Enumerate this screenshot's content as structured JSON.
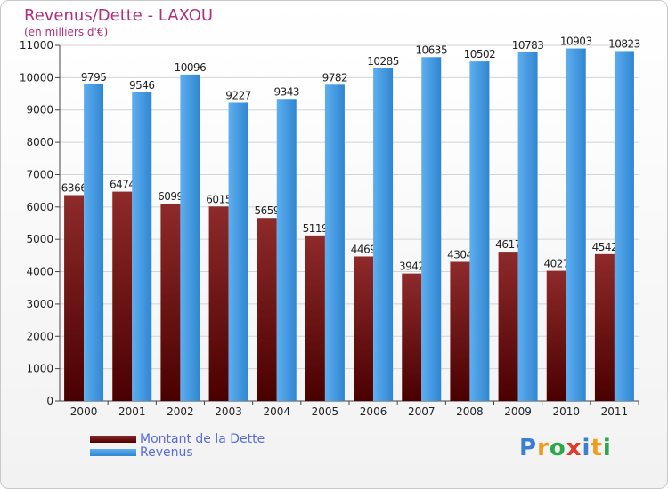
{
  "header": {
    "title": "Revenus/Dette - LAXOU",
    "subtitle": "(en milliers d'€)"
  },
  "legend": {
    "items": [
      {
        "label": "Montant de la Dette",
        "color": "#8b1a1a"
      },
      {
        "label": "Revenus",
        "color": "#3a96e0"
      }
    ]
  },
  "logo": {
    "text": "Proxiti",
    "letters": [
      "P",
      "r",
      "o",
      "x",
      "i",
      "t",
      "i"
    ],
    "colors": [
      "#3a7fd4",
      "#f29a1a",
      "#2aa84a",
      "#e03a2a",
      "#3a7fd4",
      "#f29a1a",
      "#2aa84a"
    ]
  },
  "chart_data": {
    "type": "bar",
    "title": "Revenus/Dette - LAXOU",
    "subtitle": "(en milliers d'€)",
    "categories": [
      "2000",
      "2001",
      "2002",
      "2003",
      "2004",
      "2005",
      "2006",
      "2007",
      "2008",
      "2009",
      "2010",
      "2011"
    ],
    "series": [
      {
        "name": "Montant de la Dette",
        "color": "#8b1a1a",
        "values": [
          6366,
          6474,
          6099,
          6015,
          5659,
          5119,
          4469,
          3942,
          4304,
          4617,
          4027,
          4542
        ]
      },
      {
        "name": "Revenus",
        "color": "#3a96e0",
        "values": [
          9795,
          9546,
          10096,
          9227,
          9343,
          9782,
          10285,
          10635,
          10502,
          10783,
          10903,
          10823
        ]
      }
    ],
    "yticks": [
      0,
      1000,
      2000,
      3000,
      4000,
      5000,
      6000,
      7000,
      8000,
      9000,
      10000,
      11000
    ],
    "ylim": [
      0,
      11000
    ],
    "grid": true,
    "legend_position": "bottom-left"
  }
}
